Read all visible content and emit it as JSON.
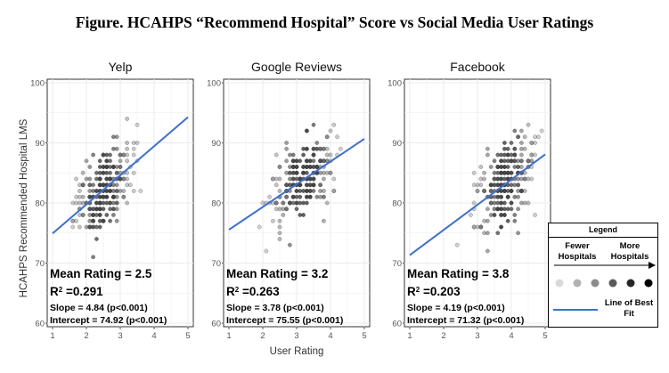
{
  "figure_title": "Figure. HCAHPS “Recommend Hospital” Score vs Social Media User Ratings",
  "colors": {
    "fit_line": "#3a6fd8",
    "panel_bg": "#ffffff",
    "grid": "#ebebeb",
    "dot": "#444444"
  },
  "chart_data": [
    {
      "type": "scatter",
      "title": "Yelp",
      "xlabel": "User Rating",
      "ylabel": "HCAHPS Recommended Hospital LMS",
      "xlim": [
        1,
        5
      ],
      "ylim": [
        60,
        100
      ],
      "x_ticks": [
        "1",
        "2",
        "3",
        "4",
        "5"
      ],
      "y_ticks": [
        "60",
        "70",
        "80",
        "90",
        "100"
      ],
      "grid": true,
      "fit_line": {
        "slope": 4.84,
        "intercept": 74.92,
        "x_range": [
          1,
          5
        ]
      },
      "point_cloud": {
        "x_mean": 2.5,
        "x_sd": 0.45,
        "x_range": [
          1.6,
          3.6
        ],
        "y_sd": 3.2,
        "y_range": [
          69,
          95
        ]
      },
      "stats": [
        {
          "label": "Mean Rating = 2.5",
          "size": "large"
        },
        {
          "label": "R",
          "sup": "2",
          "rest": " =0.291",
          "size": "large"
        },
        {
          "label": "Slope = 4.84 (p<0.001)",
          "size": "small"
        },
        {
          "label": "Intercept = 74.92 (p<0.001)",
          "size": "small"
        }
      ]
    },
    {
      "type": "scatter",
      "title": "Google Reviews",
      "xlabel": "User Rating",
      "ylabel": "",
      "xlim": [
        1,
        5
      ],
      "ylim": [
        60,
        100
      ],
      "x_ticks": [
        "1",
        "2",
        "3",
        "4",
        "5"
      ],
      "y_ticks": [
        "60",
        "70",
        "80",
        "90",
        "100"
      ],
      "grid": true,
      "fit_line": {
        "slope": 3.78,
        "intercept": 75.55,
        "x_range": [
          1,
          5
        ]
      },
      "point_cloud": {
        "x_mean": 3.2,
        "x_sd": 0.5,
        "x_range": [
          1.7,
          4.7
        ],
        "y_sd": 3.3,
        "y_range": [
          72,
          95
        ]
      },
      "stats": [
        {
          "label": "Mean Rating = 3.2",
          "size": "large"
        },
        {
          "label": "R",
          "sup": "2",
          "rest": " =0.263",
          "size": "large"
        },
        {
          "label": "Slope = 3.78 (p<0.001)",
          "size": "small"
        },
        {
          "label": "Intercept = 75.55 (p<0.001)",
          "size": "small"
        }
      ]
    },
    {
      "type": "scatter",
      "title": "Facebook",
      "xlabel": "User Rating",
      "ylabel": "",
      "xlim": [
        1,
        5
      ],
      "ylim": [
        60,
        100
      ],
      "x_ticks": [
        "1",
        "2",
        "3",
        "4",
        "5"
      ],
      "y_ticks": [
        "60",
        "70",
        "80",
        "90",
        "100"
      ],
      "grid": true,
      "fit_line": {
        "slope": 4.19,
        "intercept": 71.32,
        "x_range": [
          1,
          5
        ]
      },
      "point_cloud": {
        "x_mean": 3.8,
        "x_sd": 0.45,
        "x_range": [
          2.0,
          4.9
        ],
        "y_sd": 3.4,
        "y_range": [
          72,
          95
        ]
      },
      "stats": [
        {
          "label": "Mean Rating = 3.8",
          "size": "large"
        },
        {
          "label": "R",
          "sup": "2",
          "rest": " =0.203",
          "size": "large"
        },
        {
          "label": "Slope = 4.19 (p<0.001)",
          "size": "small"
        },
        {
          "label": "Intercept = 71.32 (p<0.001)",
          "size": "small"
        }
      ]
    }
  ],
  "legend": {
    "title": "Legend",
    "fewer_label": "Fewer Hospitals",
    "more_label": "More Hospitals",
    "density_levels": [
      0.15,
      0.3,
      0.45,
      0.65,
      0.85,
      1.0
    ],
    "line_label": "Line of Best Fit"
  }
}
